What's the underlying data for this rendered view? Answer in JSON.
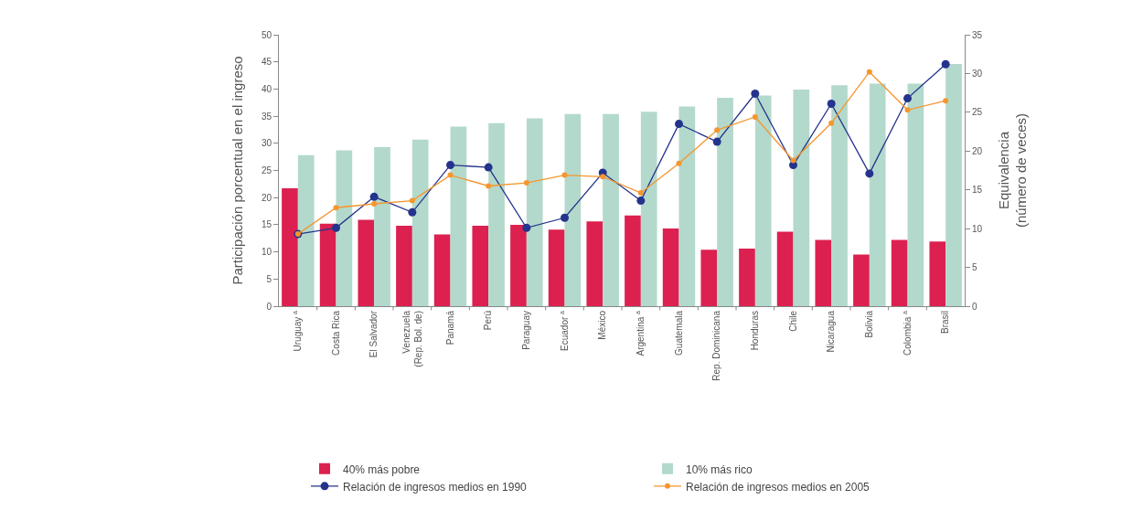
{
  "chart_data": {
    "type": "bar",
    "ylabel": "Participación porcentual en el ingreso",
    "y2label": "Equivalencia\n(número de veces)",
    "categories": [
      "Uruguay $^{a}$",
      "Costa Rica",
      "El Salvador",
      "Venezuela\n(Rep. Bol. de)",
      "Panamá",
      "Perú",
      "Paraguay",
      "Ecuador $^{a}$",
      "México",
      "Argentina $^{a}$",
      "Guatemala",
      "Rep. Dominicana",
      "Honduras",
      "Chile",
      "Nicaragua",
      "Bolivia",
      "Colombia $^{a}$",
      "Brasil"
    ],
    "series": [
      {
        "name": "40% más pobre",
        "color": "#dc2050",
        "values": [
          21.7,
          15.2,
          15.9,
          14.8,
          13.2,
          14.8,
          15.0,
          14.1,
          15.6,
          16.7,
          14.3,
          10.4,
          10.6,
          13.7,
          12.2,
          9.5,
          12.2,
          11.9
        ]
      },
      {
        "name": "10% más rico",
        "color": "#b3d9cc",
        "values": [
          27.8,
          28.7,
          29.3,
          30.7,
          33.1,
          33.7,
          34.6,
          35.4,
          35.4,
          35.8,
          36.8,
          38.4,
          38.8,
          39.9,
          40.7,
          41.0,
          41.0,
          44.6
        ]
      },
      {
        "name": "Relación de ingresos medios en 1990",
        "type": "line",
        "axis": "y2",
        "color": "#24338c",
        "values": [
          9.3,
          10.1,
          14.1,
          12.1,
          18.2,
          17.9,
          10.1,
          11.4,
          17.2,
          13.6,
          23.5,
          21.2,
          27.4,
          18.2,
          26.1,
          17.1,
          26.8,
          31.2
        ]
      },
      {
        "name": "Relación de ingresos medios en 2005",
        "type": "line",
        "axis": "y2",
        "color": "#f5962e",
        "values": [
          9.3,
          12.7,
          13.2,
          13.6,
          16.9,
          15.5,
          15.9,
          16.9,
          16.7,
          14.6,
          18.4,
          22.7,
          24.4,
          18.8,
          23.6,
          30.2,
          25.3,
          26.5
        ]
      }
    ],
    "ylim": [
      0,
      50
    ],
    "yticks": [
      0,
      5,
      10,
      15,
      20,
      25,
      30,
      35,
      40,
      45,
      50
    ],
    "y2lim": [
      0,
      35
    ],
    "y2ticks": [
      0,
      5,
      10,
      15,
      20,
      25,
      30,
      35
    ],
    "grid": false,
    "legend": "bottom",
    "marker": "circle",
    "line_style": "solid"
  }
}
